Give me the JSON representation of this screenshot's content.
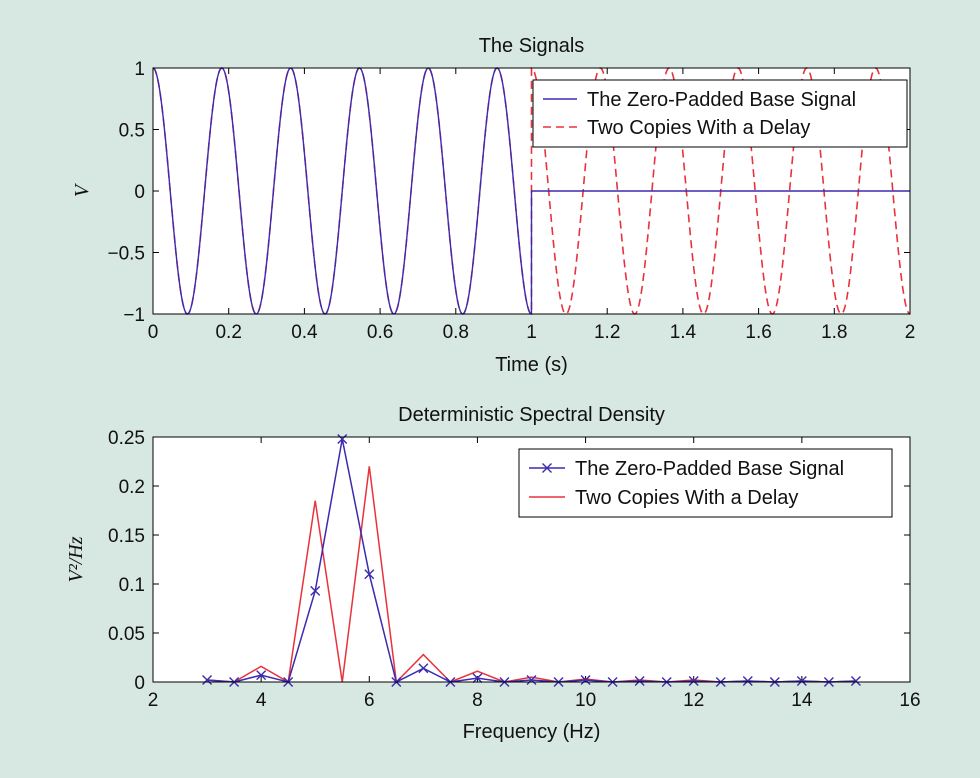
{
  "colors": {
    "background": "#d7e7e1",
    "base_signal": "#3b2bb0",
    "delayed_copies": "#e8323c",
    "axes": "#000000"
  },
  "chart_data": [
    {
      "type": "line",
      "title": "The Signals",
      "xlabel": "Time (s)",
      "ylabel": "V",
      "xlim": [
        0,
        2
      ],
      "ylim": [
        -1,
        1
      ],
      "xticks": [
        0,
        0.2,
        0.4,
        0.6,
        0.8,
        1,
        1.2,
        1.4,
        1.6,
        1.8,
        2
      ],
      "yticks": [
        -1,
        -0.5,
        0,
        0.5,
        1
      ],
      "xtick_labels": [
        "0",
        "0.2",
        "0.4",
        "0.6",
        "0.8",
        "1",
        "1.2",
        "1.4",
        "1.6",
        "1.8",
        "2"
      ],
      "ytick_labels": [
        "−1",
        "−0.5",
        "0",
        "0.5",
        "1"
      ],
      "grid": false,
      "legend_position": "top-right",
      "series": [
        {
          "name": "The Zero-Padded Base Signal",
          "style": "solid",
          "function": "cos(2*pi*5.5*t) for t<1, 0 for t>=1",
          "frequency_hz": 5.5,
          "amplitude": 1,
          "cutoff_s": 1
        },
        {
          "name": "Two Copies With a Delay",
          "style": "dashed",
          "function": "cos(2*pi*5.5*t) for 0<=t<1, cos(2*pi*5.5*(t-1)) for 1<=t<=2",
          "frequency_hz": 5.5,
          "amplitude": 1,
          "delay_s": 1
        }
      ]
    },
    {
      "type": "line",
      "title": "Deterministic Spectral Density",
      "xlabel": "Frequency (Hz)",
      "ylabel": "V²/Hz",
      "xlim": [
        2,
        16
      ],
      "ylim": [
        0,
        0.25
      ],
      "xticks": [
        2,
        4,
        6,
        8,
        10,
        12,
        14,
        16
      ],
      "yticks": [
        0,
        0.05,
        0.1,
        0.15,
        0.2,
        0.25
      ],
      "xtick_labels": [
        "2",
        "4",
        "6",
        "8",
        "10",
        "12",
        "14",
        "16"
      ],
      "ytick_labels": [
        "0",
        "0.05",
        "0.1",
        "0.15",
        "0.2",
        "0.25"
      ],
      "grid": false,
      "legend_position": "top-right",
      "x": [
        3,
        3.5,
        4,
        4.5,
        5,
        5.5,
        6,
        6.5,
        7,
        7.5,
        8,
        8.5,
        9,
        9.5,
        10,
        10.5,
        11,
        11.5,
        12,
        12.5,
        13,
        13.5,
        14,
        14.5,
        15
      ],
      "series": [
        {
          "name": "The Zero-Padded Base Signal",
          "marker": "x",
          "values": [
            0.002,
            0,
            0.007,
            0,
            0.093,
            0.248,
            0.11,
            0,
            0.014,
            0,
            0.004,
            0,
            0.002,
            0,
            0.002,
            0,
            0.001,
            0,
            0.001,
            0,
            0.001,
            0,
            0.001,
            0,
            0.001
          ]
        },
        {
          "name": "Two Copies With a Delay",
          "marker": "none",
          "values": [
            0.002,
            0,
            0.016,
            0,
            0.185,
            0,
            0.22,
            0,
            0.028,
            0,
            0.011,
            0,
            0.005,
            0,
            0.003,
            0,
            0.002,
            0,
            0.002,
            0,
            0.001,
            0,
            0.001,
            0,
            0.001
          ]
        }
      ]
    }
  ]
}
